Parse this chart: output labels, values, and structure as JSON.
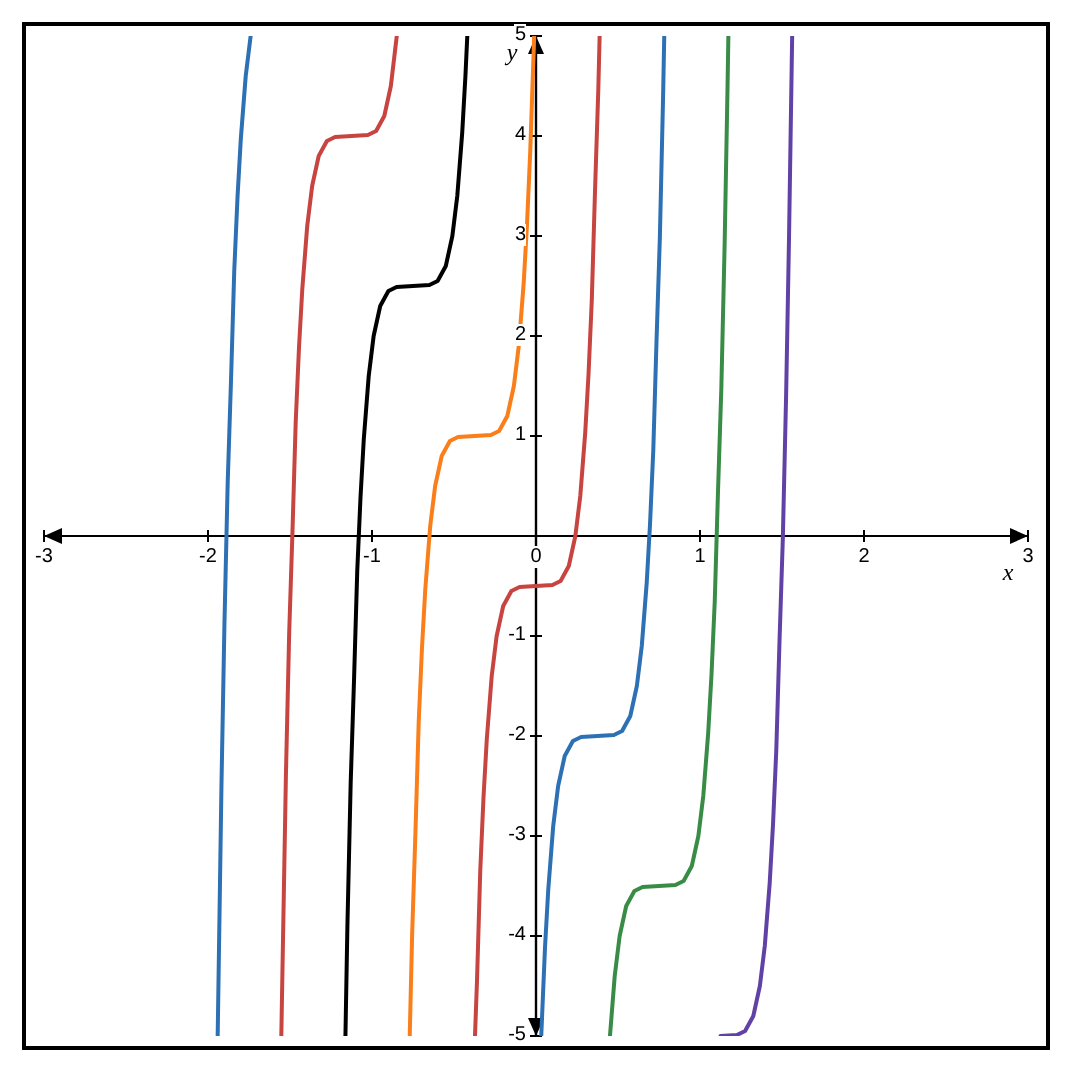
{
  "chart_data": {
    "type": "line",
    "xlabel": "x",
    "ylabel": "y",
    "xlim": [
      -3,
      3
    ],
    "ylim": [
      -5,
      5
    ],
    "xticks": [
      -3,
      -2,
      -1,
      0,
      1,
      2,
      3
    ],
    "yticks": [
      -5,
      -4,
      -3,
      -2,
      -1,
      1,
      2,
      3,
      4,
      5
    ],
    "grid": false,
    "series": [
      {
        "color": "#2d70b3",
        "x": [
          -1.74,
          -1.77,
          -1.8,
          -1.82,
          -1.84,
          -1.86,
          -1.88,
          -1.9,
          -1.918,
          -1.941
        ],
        "values": [
          5,
          4.6,
          3.97,
          3.39,
          2.65,
          1.54,
          0.53,
          -0.9,
          -2.5,
          -5
        ]
      },
      {
        "color": "#c74440",
        "x": [
          -1.553,
          -1.525,
          -1.505,
          -1.485,
          -1.465,
          -1.445,
          -1.425,
          -1.395,
          -1.365,
          -1.325,
          -1.275,
          -1.225,
          -1.125,
          -1.025,
          -0.975,
          -0.925,
          -0.885,
          -0.849
        ],
        "values": [
          -5,
          -2.4,
          -0.97,
          0.04,
          1.15,
          1.89,
          2.47,
          3.1,
          3.5,
          3.8,
          3.95,
          3.99,
          4,
          4.01,
          4.05,
          4.2,
          4.5,
          5
        ]
      },
      {
        "color": "#000000",
        "x": [
          -1.162,
          -1.15,
          -1.13,
          -1.11,
          -1.09,
          -1.07,
          -1.05,
          -1.02,
          -0.99,
          -0.95,
          -0.9,
          -0.85,
          -0.75,
          -0.65,
          -0.6,
          -0.55,
          -0.51,
          -0.48,
          -0.45,
          -0.43,
          -0.419
        ],
        "values": [
          -5,
          -3.9,
          -2.47,
          -1.46,
          -0.35,
          0.39,
          0.97,
          1.6,
          2,
          2.3,
          2.45,
          2.49,
          2.5,
          2.51,
          2.55,
          2.7,
          3,
          3.4,
          4.03,
          4.61,
          5
        ]
      },
      {
        "color": "#fa7e19",
        "x": [
          -0.77,
          -0.755,
          -0.735,
          -0.715,
          -0.695,
          -0.675,
          -0.645,
          -0.615,
          -0.575,
          -0.525,
          -0.475,
          -0.375,
          -0.275,
          -0.225,
          -0.175,
          -0.135,
          -0.105,
          -0.075,
          -0.055,
          -0.035,
          -0.011
        ],
        "values": [
          -5,
          -3.97,
          -2.96,
          -1.85,
          -1.11,
          -0.53,
          0.1,
          0.5,
          0.8,
          0.95,
          0.99,
          1,
          1.01,
          1.05,
          1.2,
          1.5,
          1.9,
          2.53,
          3.11,
          3.85,
          5
        ]
      },
      {
        "color": "#c74440",
        "x": [
          -0.372,
          -0.36,
          -0.34,
          -0.32,
          -0.3,
          -0.27,
          -0.24,
          -0.2,
          -0.15,
          -0.1,
          0,
          0.1,
          0.15,
          0.2,
          0.24,
          0.27,
          0.3,
          0.32,
          0.34,
          0.36,
          0.38,
          0.388
        ],
        "values": [
          -5,
          -4.46,
          -3.35,
          -2.61,
          -2.03,
          -1.4,
          -1,
          -0.7,
          -0.55,
          -0.51,
          -0.5,
          -0.49,
          -0.45,
          -0.3,
          0,
          0.4,
          1.03,
          1.61,
          2.35,
          3.46,
          4.47,
          5
        ]
      },
      {
        "color": "#2d70b3",
        "x": [
          0.032,
          0.055,
          0.075,
          0.105,
          0.135,
          0.175,
          0.225,
          0.275,
          0.375,
          0.475,
          0.525,
          0.575,
          0.615,
          0.645,
          0.675,
          0.695,
          0.715,
          0.735,
          0.755,
          0.775,
          0.782
        ],
        "values": [
          -5,
          -4.11,
          -3.53,
          -2.9,
          -2.5,
          -2.2,
          -2.05,
          -2.01,
          -2,
          -1.99,
          -1.95,
          -1.8,
          -1.5,
          -1.1,
          -0.47,
          0.11,
          0.85,
          1.96,
          2.97,
          4.4,
          5
        ]
      },
      {
        "color": "#388c46",
        "x": [
          0.451,
          0.48,
          0.51,
          0.55,
          0.6,
          0.65,
          0.75,
          0.85,
          0.9,
          0.95,
          0.99,
          1.02,
          1.05,
          1.07,
          1.09,
          1.11,
          1.13,
          1.15,
          1.168,
          1.173
        ],
        "values": [
          -5,
          -4.4,
          -4,
          -3.7,
          -3.55,
          -3.51,
          -3.5,
          -3.49,
          -3.45,
          -3.3,
          -3,
          -2.6,
          -1.97,
          -1.39,
          -0.65,
          0.46,
          1.47,
          2.9,
          4.5,
          5
        ]
      },
      {
        "color": "#6042a6",
        "x": [
          1.125,
          1.225,
          1.275,
          1.325,
          1.365,
          1.395,
          1.425,
          1.445,
          1.465,
          1.485,
          1.505,
          1.525,
          1.543,
          1.562
        ],
        "values": [
          -5,
          -4.99,
          -4.95,
          -4.8,
          -4.5,
          -4.1,
          -3.47,
          -2.89,
          -2.15,
          -1.04,
          -0.03,
          1.4,
          3,
          5
        ]
      }
    ]
  }
}
